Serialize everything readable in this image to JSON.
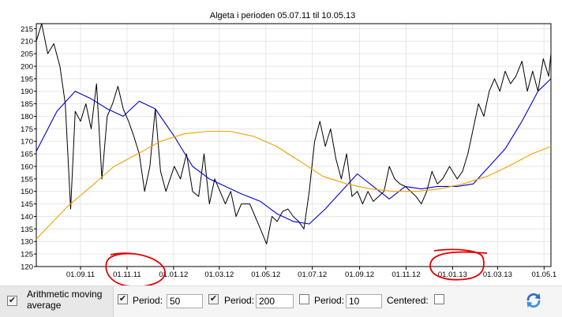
{
  "chart_data": {
    "type": "line",
    "title": "Algeta i perioden 05.07.11 til 10.05.13",
    "xlabel": "",
    "ylabel": "",
    "x_range": [
      "2011-07-05",
      "2013-05-10"
    ],
    "ylim": [
      120,
      217
    ],
    "y_ticks": [
      120,
      125,
      130,
      135,
      140,
      145,
      150,
      155,
      160,
      165,
      170,
      175,
      180,
      185,
      190,
      195,
      200,
      205,
      210,
      215
    ],
    "x_ticks": [
      {
        "date": "2011-09-01",
        "label": "01.09.11"
      },
      {
        "date": "2011-11-01",
        "label": "01.11.11"
      },
      {
        "date": "2012-01-01",
        "label": "01.01.12"
      },
      {
        "date": "2012-03-01",
        "label": "01.03.12"
      },
      {
        "date": "2012-05-01",
        "label": "01.05.12"
      },
      {
        "date": "2012-07-01",
        "label": "01.07.12"
      },
      {
        "date": "2012-09-01",
        "label": "01.09.12"
      },
      {
        "date": "2012-11-01",
        "label": "01.11.12"
      },
      {
        "date": "2013-01-01",
        "label": "01.01.13"
      },
      {
        "date": "2013-03-01",
        "label": "01.03.13"
      },
      {
        "date": "2013-05-01",
        "label": "01.05.1"
      }
    ],
    "grid": true,
    "series": [
      {
        "color": "#000000",
        "x": [
          "2011-07-05",
          "2011-07-12",
          "2011-07-20",
          "2011-07-28",
          "2011-08-05",
          "2011-08-12",
          "2011-08-19",
          "2011-08-25",
          "2011-09-01",
          "2011-09-08",
          "2011-09-15",
          "2011-09-22",
          "2011-09-29",
          "2011-10-06",
          "2011-10-13",
          "2011-10-20",
          "2011-10-27",
          "2011-11-03",
          "2011-11-10",
          "2011-11-17",
          "2011-11-24",
          "2011-12-01",
          "2011-12-08",
          "2011-12-15",
          "2011-12-22",
          "2012-01-02",
          "2012-01-10",
          "2012-01-18",
          "2012-01-26",
          "2012-02-03",
          "2012-02-10",
          "2012-02-17",
          "2012-02-24",
          "2012-03-02",
          "2012-03-09",
          "2012-03-16",
          "2012-03-23",
          "2012-03-30",
          "2012-04-10",
          "2012-04-17",
          "2012-04-24",
          "2012-05-02",
          "2012-05-09",
          "2012-05-16",
          "2012-05-23",
          "2012-05-30",
          "2012-06-06",
          "2012-06-13",
          "2012-06-20",
          "2012-06-27",
          "2012-07-04",
          "2012-07-11",
          "2012-07-18",
          "2012-07-25",
          "2012-08-01",
          "2012-08-08",
          "2012-08-15",
          "2012-08-22",
          "2012-08-29",
          "2012-09-05",
          "2012-09-12",
          "2012-09-19",
          "2012-09-26",
          "2012-10-03",
          "2012-10-10",
          "2012-10-17",
          "2012-10-24",
          "2012-10-31",
          "2012-11-07",
          "2012-11-14",
          "2012-11-21",
          "2012-11-28",
          "2012-12-05",
          "2012-12-12",
          "2012-12-19",
          "2012-12-28",
          "2013-01-07",
          "2013-01-14",
          "2013-01-21",
          "2013-01-28",
          "2013-02-04",
          "2013-02-11",
          "2013-02-18",
          "2013-02-25",
          "2013-03-04",
          "2013-03-11",
          "2013-03-18",
          "2013-03-25",
          "2013-04-02",
          "2013-04-09",
          "2013-04-16",
          "2013-04-23",
          "2013-04-30",
          "2013-05-07",
          "2013-05-10"
        ],
        "values": [
          210,
          217,
          205,
          209,
          200,
          185,
          143,
          182,
          178,
          185,
          175,
          193,
          155,
          180,
          185,
          192,
          183,
          178,
          172,
          165,
          150,
          160,
          183,
          158,
          150,
          160,
          155,
          165,
          150,
          148,
          165,
          145,
          155,
          150,
          145,
          150,
          140,
          145,
          145,
          140,
          135,
          129,
          140,
          138,
          142,
          143,
          140,
          138,
          135,
          150,
          170,
          178,
          168,
          175,
          163,
          155,
          165,
          148,
          150,
          145,
          150,
          146,
          148,
          150,
          160,
          155,
          153,
          152,
          150,
          148,
          145,
          150,
          158,
          153,
          155,
          160,
          155,
          158,
          165,
          175,
          185,
          180,
          190,
          195,
          190,
          198,
          193,
          196,
          202,
          190,
          198,
          190,
          203,
          196,
          205
        ]
      },
      {
        "color": "#0000cc",
        "x": [
          "2011-07-05",
          "2011-08-01",
          "2011-08-25",
          "2011-09-15",
          "2011-10-06",
          "2011-10-27",
          "2011-11-17",
          "2011-12-08",
          "2012-01-02",
          "2012-01-26",
          "2012-02-17",
          "2012-03-09",
          "2012-03-30",
          "2012-04-24",
          "2012-05-16",
          "2012-06-06",
          "2012-06-27",
          "2012-07-18",
          "2012-08-08",
          "2012-08-29",
          "2012-09-19",
          "2012-10-10",
          "2012-10-31",
          "2012-11-21",
          "2012-12-12",
          "2013-01-07",
          "2013-01-28",
          "2013-02-18",
          "2013-03-11",
          "2013-04-02",
          "2013-04-23",
          "2013-05-10"
        ],
        "values": [
          166,
          182,
          190,
          187,
          183,
          180,
          186,
          183,
          172,
          160,
          155,
          152,
          149,
          146,
          141,
          138,
          137,
          143,
          150,
          157,
          152,
          147,
          152,
          151,
          152,
          152,
          153,
          160,
          167,
          178,
          190,
          195
        ]
      },
      {
        "color": "#f0a000",
        "x": [
          "2011-07-05",
          "2011-08-15",
          "2011-09-15",
          "2011-10-15",
          "2011-11-15",
          "2011-12-15",
          "2012-01-15",
          "2012-02-15",
          "2012-03-15",
          "2012-04-15",
          "2012-05-15",
          "2012-06-15",
          "2012-07-15",
          "2012-08-15",
          "2012-09-15",
          "2012-10-15",
          "2012-11-15",
          "2012-12-15",
          "2013-01-15",
          "2013-02-15",
          "2013-03-15",
          "2013-04-15",
          "2013-05-10"
        ],
        "values": [
          131,
          144,
          152,
          160,
          165,
          170,
          173,
          174,
          174,
          172,
          168,
          162,
          156,
          153,
          151,
          150,
          150,
          151,
          153,
          156,
          160,
          165,
          168
        ]
      }
    ]
  },
  "controls": {
    "ama_label_line1": "Arithmetic moving",
    "ama_label_line2": "average",
    "period_label": "Period:",
    "period1_value": "50",
    "period2_value": "200",
    "period3_value": "10",
    "centered_label": "Centered:",
    "check_mark": "✔"
  },
  "annotations": {
    "circle_color": "#e00000"
  }
}
